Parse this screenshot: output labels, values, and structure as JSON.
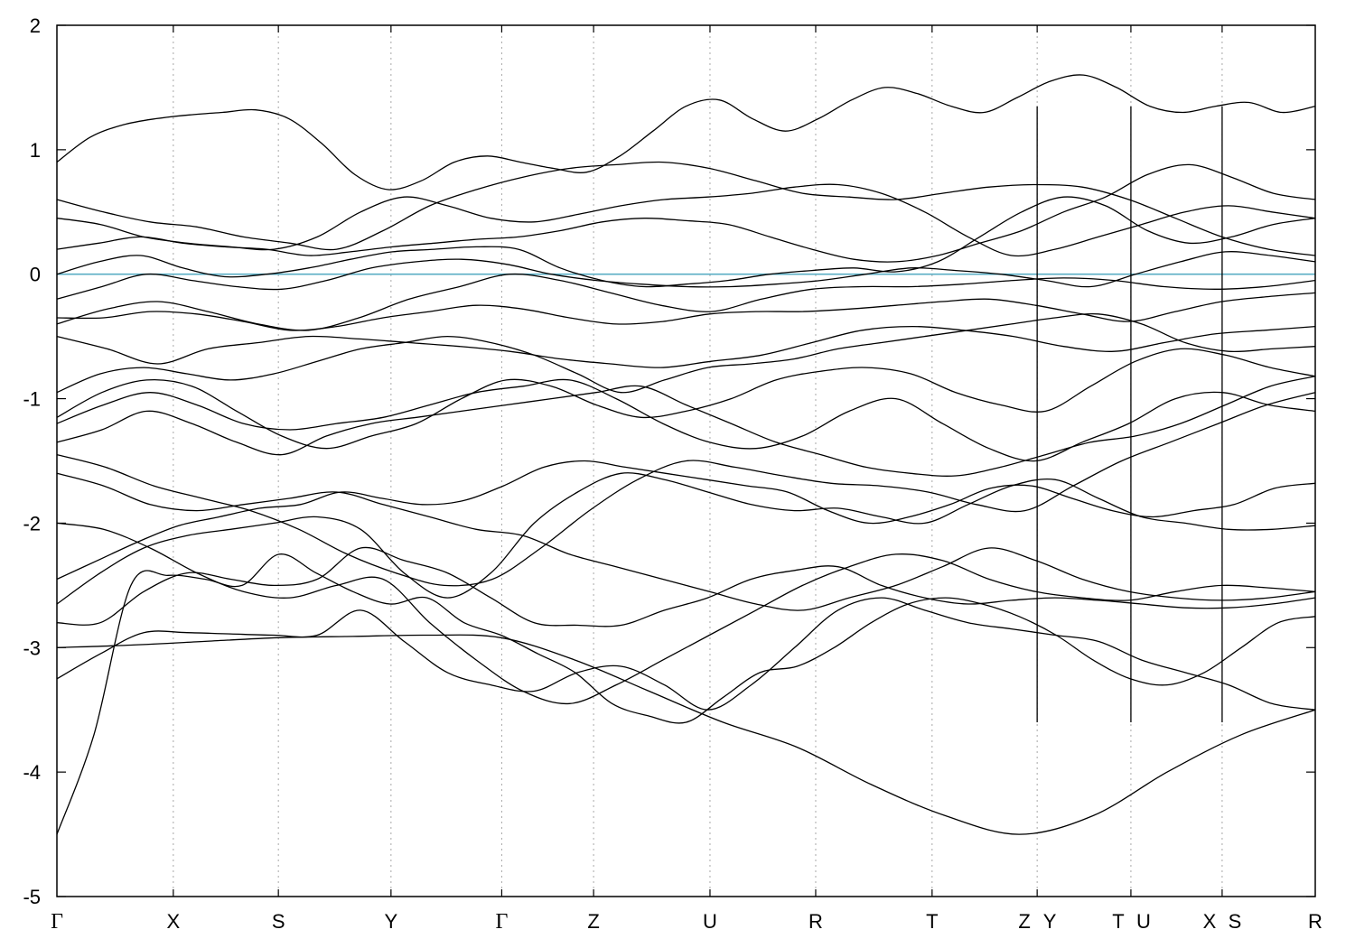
{
  "chart_data": {
    "type": "line",
    "title": "",
    "xlabel": "",
    "ylabel": "",
    "ylim": [
      -5,
      2
    ],
    "yticks": [
      2,
      1,
      0,
      -1,
      -2,
      -3,
      -4,
      -5
    ],
    "grid": "vertical dotted lines at high-symmetry points",
    "fermi_level": 0,
    "colors": {
      "bands": "#000000",
      "fermi": "#5aaec4",
      "grid": "#a8a8a8"
    },
    "k_labels": [
      "Γ",
      "X",
      "S",
      "Y",
      "Γ",
      "Z",
      "U",
      "R",
      "T",
      "Z",
      "Y",
      "T",
      "U",
      "X",
      "S",
      "R"
    ],
    "segments": [
      {
        "from": "Γ",
        "to": "X"
      },
      {
        "from": "X",
        "to": "S"
      },
      {
        "from": "S",
        "to": "Y"
      },
      {
        "from": "Y",
        "to": "Γ"
      },
      {
        "from": "Γ",
        "to": "Z"
      },
      {
        "from": "Z",
        "to": "U"
      },
      {
        "from": "U",
        "to": "R"
      },
      {
        "from": "R",
        "to": "T"
      },
      {
        "from": "T",
        "to": "Z"
      },
      {
        "from": "Y",
        "to": "T"
      },
      {
        "from": "U",
        "to": "X"
      },
      {
        "from": "S",
        "to": "R"
      }
    ],
    "path_positions": [
      0,
      0.0925,
      0.176,
      0.2655,
      0.3535,
      0.4265,
      0.519,
      0.603,
      0.6955,
      0.779,
      0.8535,
      0.926,
      1.0
    ],
    "series": [
      {
        "values": [
          -4.5,
          -3.7,
          -2.5,
          -2.42,
          -2.45,
          -2.5,
          -2.25,
          -2.4,
          -2.55,
          -2.65,
          -2.6,
          -2.8,
          -2.9,
          -3.05,
          -3.2,
          -3.45,
          -3.55,
          -3.6,
          -3.4,
          -3.2,
          -3.15,
          -3.0,
          -2.8,
          -2.65,
          -2.6,
          -2.65,
          -2.75,
          -2.9,
          -3.1,
          -3.25,
          -3.3,
          -3.2,
          -3.0,
          -2.8,
          -2.75
        ]
      },
      {
        "values": [
          -3.25,
          -3.05,
          -2.88,
          -2.88,
          -2.89,
          -2.9,
          -2.9,
          -2.7,
          -2.95,
          -3.2,
          -3.3,
          -3.35,
          -3.2,
          -3.15,
          -3.3,
          -3.5,
          -3.3,
          -3.0,
          -2.7,
          -2.6,
          -2.7,
          -2.8,
          -2.85,
          -2.9,
          -2.95,
          -3.1,
          -3.2,
          -3.3,
          -3.45,
          -3.5
        ]
      },
      {
        "values": [
          -3.0,
          -2.98,
          -2.95,
          -2.92,
          -2.91,
          -2.9,
          -2.92,
          -3.1,
          -3.35,
          -3.6,
          -3.8,
          -4.1,
          -4.35,
          -4.5,
          -4.35,
          -4.0,
          -3.7,
          -3.5
        ]
      },
      {
        "values": [
          -2.8,
          -2.8,
          -2.55,
          -2.4,
          -2.45,
          -2.5,
          -2.45,
          -2.2,
          -2.3,
          -2.4,
          -2.6,
          -2.8,
          -2.82,
          -2.82,
          -2.7,
          -2.6,
          -2.45,
          -2.38,
          -2.35,
          -2.5,
          -2.6,
          -2.65,
          -2.62,
          -2.6,
          -2.62,
          -2.65,
          -2.68,
          -2.68,
          -2.65,
          -2.6
        ]
      },
      {
        "values": [
          -2.65,
          -2.4,
          -2.2,
          -2.1,
          -2.05,
          -2.0,
          -1.95,
          -2.05,
          -2.4,
          -2.6,
          -2.4,
          -2.0,
          -1.75,
          -1.6,
          -1.65,
          -1.75,
          -1.85,
          -1.9,
          -1.88,
          -1.95,
          -2.0,
          -1.85,
          -1.7,
          -1.65,
          -1.8,
          -1.95,
          -2.0,
          -2.05,
          -2.05,
          -2.02
        ]
      },
      {
        "values": [
          -2.45,
          -2.3,
          -2.15,
          -2.02,
          -1.95,
          -1.88,
          -1.85,
          -1.75,
          -1.8,
          -1.85,
          -1.82,
          -1.7,
          -1.55,
          -1.5,
          -1.55,
          -1.6,
          -1.65,
          -1.7,
          -1.75,
          -1.9,
          -2.0,
          -1.95,
          -1.85,
          -1.72,
          -1.7,
          -1.8,
          -1.9,
          -1.95,
          -1.9,
          -1.85,
          -1.72,
          -1.68
        ]
      },
      {
        "values": [
          -2.0,
          -2.05,
          -2.2,
          -2.4,
          -2.55,
          -2.6,
          -2.5,
          -2.45,
          -2.8,
          -3.1,
          -3.35,
          -3.45,
          -3.3,
          -3.1,
          -2.9,
          -2.7,
          -2.5,
          -2.35,
          -2.25,
          -2.3,
          -2.45,
          -2.55,
          -2.6,
          -2.62,
          -2.55,
          -2.5,
          -2.52,
          -2.55
        ]
      },
      {
        "values": [
          -1.6,
          -1.7,
          -1.85,
          -1.9,
          -1.85,
          -1.8,
          -1.75,
          -1.85,
          -1.95,
          -2.05,
          -2.1,
          -2.25,
          -2.35,
          -2.45,
          -2.55,
          -2.65,
          -2.7,
          -2.6,
          -2.5,
          -2.35,
          -2.2,
          -2.3,
          -2.45,
          -2.55,
          -2.6,
          -2.62,
          -2.6,
          -2.55
        ]
      },
      {
        "values": [
          -1.45,
          -1.55,
          -1.7,
          -1.8,
          -1.9,
          -2.05,
          -2.25,
          -2.4,
          -2.5,
          -2.45,
          -2.2,
          -1.9,
          -1.65,
          -1.5,
          -1.55,
          -1.62,
          -1.68,
          -1.7,
          -1.75,
          -1.85,
          -1.9,
          -1.7,
          -1.5,
          -1.35,
          -1.2,
          -1.05,
          -0.95
        ]
      },
      {
        "values": [
          -1.35,
          -1.25,
          -1.1,
          -1.2,
          -1.35,
          -1.45,
          -1.3,
          -1.2,
          -1.15,
          -1.1,
          -1.05,
          -1.0,
          -0.95,
          -0.9,
          -1.05,
          -1.2,
          -1.35,
          -1.45,
          -1.55,
          -1.6,
          -1.62,
          -1.55,
          -1.45,
          -1.35,
          -1.3,
          -1.2,
          -1.05,
          -0.9,
          -0.82
        ]
      },
      {
        "values": [
          -1.2,
          -1.05,
          -0.95,
          -1.05,
          -1.2,
          -1.25,
          -1.2,
          -1.15,
          -1.05,
          -0.95,
          -0.9,
          -0.85,
          -1.0,
          -1.2,
          -1.35,
          -1.4,
          -1.3,
          -1.1,
          -1.0,
          -1.2,
          -1.4,
          -1.5,
          -1.35,
          -1.2,
          -1.0,
          -0.95,
          -1.05,
          -1.1
        ]
      },
      {
        "values": [
          -1.15,
          -0.95,
          -0.85,
          -0.9,
          -1.1,
          -1.3,
          -1.4,
          -1.3,
          -1.2,
          -1.0,
          -0.85,
          -0.9,
          -1.05,
          -1.15,
          -1.1,
          -1.0,
          -0.85,
          -0.78,
          -0.75,
          -0.8,
          -0.95,
          -1.05,
          -1.1,
          -0.9,
          -0.7,
          -0.6,
          -0.65,
          -0.75,
          -0.82
        ]
      },
      {
        "values": [
          -0.95,
          -0.8,
          -0.75,
          -0.8,
          -0.85,
          -0.8,
          -0.7,
          -0.6,
          -0.55,
          -0.5,
          -0.55,
          -0.65,
          -0.8,
          -0.95,
          -0.85,
          -0.75,
          -0.72,
          -0.68,
          -0.6,
          -0.55,
          -0.5,
          -0.45,
          -0.4,
          -0.35,
          -0.32,
          -0.4,
          -0.55,
          -0.62,
          -0.6,
          -0.58
        ]
      },
      {
        "values": [
          -0.5,
          -0.6,
          -0.72,
          -0.6,
          -0.55,
          -0.5,
          -0.52,
          -0.55,
          -0.58,
          -0.62,
          -0.68,
          -0.72,
          -0.75,
          -0.7,
          -0.65,
          -0.55,
          -0.45,
          -0.42,
          -0.45,
          -0.5,
          -0.58,
          -0.62,
          -0.55,
          -0.48,
          -0.45,
          -0.42
        ]
      },
      {
        "values": [
          -0.35,
          -0.35,
          -0.3,
          -0.32,
          -0.38,
          -0.45,
          -0.42,
          -0.35,
          -0.3,
          -0.25,
          -0.28,
          -0.35,
          -0.4,
          -0.38,
          -0.32,
          -0.3,
          -0.3,
          -0.28,
          -0.25,
          -0.22,
          -0.2,
          -0.25,
          -0.32,
          -0.38,
          -0.3,
          -0.22,
          -0.18,
          -0.15
        ]
      },
      {
        "values": [
          -0.4,
          -0.28,
          -0.22,
          -0.3,
          -0.4,
          -0.45,
          -0.35,
          -0.2,
          -0.1,
          0.0,
          -0.05,
          -0.15,
          -0.25,
          -0.3,
          -0.2,
          -0.12,
          -0.1,
          -0.1,
          -0.08,
          -0.05,
          -0.03,
          -0.05,
          -0.1,
          -0.12,
          -0.1,
          -0.05
        ]
      },
      {
        "values": [
          -0.2,
          -0.1,
          0.0,
          -0.05,
          -0.1,
          -0.12,
          -0.05,
          0.05,
          0.1,
          0.12,
          0.08,
          0.0,
          -0.05,
          -0.08,
          -0.1,
          -0.1,
          -0.08,
          -0.05,
          0.0,
          0.05,
          0.03,
          0.0,
          -0.05,
          -0.1,
          0.0,
          0.1,
          0.18,
          0.15,
          0.1
        ]
      },
      {
        "values": [
          0.0,
          0.1,
          0.15,
          0.05,
          -0.02,
          0.0,
          0.05,
          0.12,
          0.18,
          0.2,
          0.22,
          0.2,
          0.05,
          -0.05,
          -0.1,
          -0.08,
          -0.05,
          0.0,
          0.03,
          0.05,
          0.02,
          0.1,
          0.3,
          0.5,
          0.62,
          0.55,
          0.35,
          0.25,
          0.3,
          0.4,
          0.45
        ]
      },
      {
        "values": [
          0.2,
          0.25,
          0.3,
          0.25,
          0.22,
          0.2,
          0.15,
          0.18,
          0.22,
          0.25,
          0.28,
          0.3,
          0.35,
          0.42,
          0.45,
          0.43,
          0.4,
          0.3,
          0.2,
          0.12,
          0.1,
          0.15,
          0.25,
          0.35,
          0.5,
          0.62,
          0.8,
          0.88,
          0.78,
          0.65,
          0.6
        ]
      },
      {
        "values": [
          0.45,
          0.4,
          0.3,
          0.25,
          0.22,
          0.2,
          0.3,
          0.5,
          0.62,
          0.55,
          0.45,
          0.42,
          0.48,
          0.55,
          0.6,
          0.62,
          0.65,
          0.7,
          0.72,
          0.65,
          0.5,
          0.3,
          0.15,
          0.2,
          0.3,
          0.4,
          0.5,
          0.55,
          0.5,
          0.45
        ]
      },
      {
        "values": [
          0.6,
          0.5,
          0.42,
          0.38,
          0.3,
          0.25,
          0.2,
          0.35,
          0.55,
          0.68,
          0.78,
          0.85,
          0.88,
          0.9,
          0.85,
          0.75,
          0.65,
          0.62,
          0.6,
          0.65,
          0.7,
          0.72,
          0.7,
          0.6,
          0.45,
          0.3,
          0.2,
          0.15
        ]
      },
      {
        "values": [
          0.9,
          1.1,
          1.2,
          1.25,
          1.28,
          1.3,
          1.32,
          1.25,
          1.05,
          0.8,
          0.68,
          0.75,
          0.9,
          0.95,
          0.9,
          0.85,
          0.82,
          0.95,
          1.15,
          1.35,
          1.4,
          1.25,
          1.15,
          1.25,
          1.4,
          1.5,
          1.45,
          1.35,
          1.3,
          1.42,
          1.55,
          1.6,
          1.5,
          1.35,
          1.3,
          1.35,
          1.38,
          1.3,
          1.35
        ]
      }
    ]
  }
}
